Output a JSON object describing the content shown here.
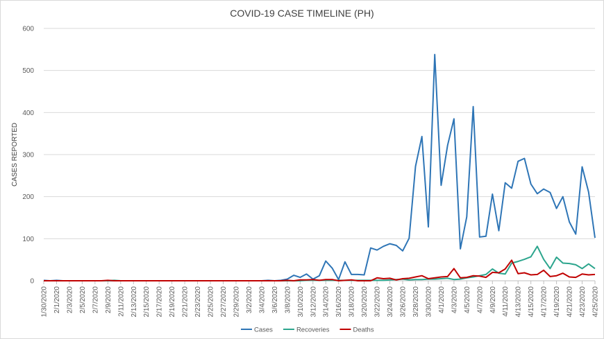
{
  "chart_data": {
    "type": "line",
    "title": "COVID-19 CASE TIMELINE (PH)",
    "xlabel": "",
    "ylabel": "CASES REPORTED",
    "ylim": [
      0,
      600
    ],
    "yticks": [
      0,
      100,
      200,
      300,
      400,
      500,
      600
    ],
    "grid": true,
    "legend_position": "bottom",
    "x_tick_labels": [
      "1/30/2020",
      "2/1/2020",
      "2/3/2020",
      "2/5/2020",
      "2/7/2020",
      "2/9/2020",
      "2/11/2020",
      "2/13/2020",
      "2/15/2020",
      "2/17/2020",
      "2/19/2020",
      "2/21/2020",
      "2/23/2020",
      "2/25/2020",
      "2/27/2020",
      "2/29/2020",
      "3/2/2020",
      "3/4/2020",
      "3/6/2020",
      "3/8/2020",
      "3/10/2020",
      "3/12/2020",
      "3/14/2020",
      "3/16/2020",
      "3/18/2020",
      "3/20/2020",
      "3/22/2020",
      "3/24/2020",
      "3/26/2020",
      "3/28/2020",
      "3/30/2020",
      "4/1/2020",
      "4/3/2020",
      "4/5/2020",
      "4/7/2020",
      "4/9/2020",
      "4/11/2020",
      "4/13/2020",
      "4/15/2020",
      "4/17/2020",
      "4/19/2020",
      "4/21/2020",
      "4/23/2020",
      "4/25/2020"
    ],
    "x": [
      "1/30/2020",
      "1/31/2020",
      "2/1/2020",
      "2/2/2020",
      "2/3/2020",
      "2/4/2020",
      "2/5/2020",
      "2/6/2020",
      "2/7/2020",
      "2/8/2020",
      "2/9/2020",
      "2/10/2020",
      "2/11/2020",
      "2/12/2020",
      "2/13/2020",
      "2/14/2020",
      "2/15/2020",
      "2/16/2020",
      "2/17/2020",
      "2/18/2020",
      "2/19/2020",
      "2/20/2020",
      "2/21/2020",
      "2/22/2020",
      "2/23/2020",
      "2/24/2020",
      "2/25/2020",
      "2/26/2020",
      "2/27/2020",
      "2/28/2020",
      "2/29/2020",
      "3/1/2020",
      "3/2/2020",
      "3/3/2020",
      "3/4/2020",
      "3/5/2020",
      "3/6/2020",
      "3/7/2020",
      "3/8/2020",
      "3/9/2020",
      "3/10/2020",
      "3/11/2020",
      "3/12/2020",
      "3/13/2020",
      "3/14/2020",
      "3/15/2020",
      "3/16/2020",
      "3/17/2020",
      "3/18/2020",
      "3/19/2020",
      "3/20/2020",
      "3/21/2020",
      "3/22/2020",
      "3/23/2020",
      "3/24/2020",
      "3/25/2020",
      "3/26/2020",
      "3/27/2020",
      "3/28/2020",
      "3/29/2020",
      "3/30/2020",
      "3/31/2020",
      "4/1/2020",
      "4/2/2020",
      "4/3/2020",
      "4/4/2020",
      "4/5/2020",
      "4/6/2020",
      "4/7/2020",
      "4/8/2020",
      "4/9/2020",
      "4/10/2020",
      "4/11/2020",
      "4/12/2020",
      "4/13/2020",
      "4/14/2020",
      "4/15/2020",
      "4/16/2020",
      "4/17/2020",
      "4/18/2020",
      "4/19/2020",
      "4/20/2020",
      "4/21/2020",
      "4/22/2020",
      "4/23/2020",
      "4/24/2020",
      "4/25/2020"
    ],
    "series": [
      {
        "name": "Cases",
        "color": "#2e75b6",
        "values": [
          1,
          0,
          1,
          0,
          0,
          0,
          0,
          0,
          0,
          0,
          0,
          0,
          0,
          0,
          0,
          0,
          0,
          0,
          0,
          0,
          0,
          0,
          0,
          0,
          0,
          0,
          0,
          0,
          0,
          0,
          0,
          0,
          0,
          0,
          0,
          1,
          0,
          1,
          4,
          13,
          8,
          16,
          4,
          12,
          47,
          30,
          3,
          45,
          15,
          15,
          14,
          78,
          73,
          82,
          88,
          84,
          71,
          101,
          272,
          343,
          128,
          538,
          227,
          322,
          385,
          76,
          152,
          414,
          104,
          106,
          206,
          119,
          233,
          220,
          284,
          291,
          230,
          207,
          218,
          210,
          172,
          200,
          140,
          111,
          271,
          211,
          102
        ]
      },
      {
        "name": "Recoveries",
        "color": "#2ca58d",
        "values": [
          0,
          0,
          0,
          0,
          0,
          0,
          0,
          0,
          0,
          0,
          0,
          1,
          0,
          0,
          0,
          0,
          0,
          0,
          0,
          0,
          0,
          0,
          0,
          0,
          0,
          0,
          0,
          0,
          0,
          0,
          0,
          0,
          0,
          0,
          0,
          0,
          0,
          0,
          0,
          0,
          0,
          1,
          1,
          1,
          1,
          1,
          1,
          1,
          1,
          1,
          1,
          1,
          1,
          1,
          2,
          3,
          4,
          2,
          3,
          3,
          4,
          4,
          5,
          6,
          3,
          4,
          7,
          9,
          12,
          15,
          28,
          18,
          16,
          42,
          46,
          51,
          57,
          82,
          51,
          29,
          56,
          42,
          41,
          38,
          29,
          40,
          29
        ]
      },
      {
        "name": "Deaths",
        "color": "#c00000",
        "values": [
          0,
          0,
          0,
          0,
          0,
          0,
          0,
          0,
          0,
          0,
          1,
          0,
          0,
          0,
          0,
          0,
          0,
          0,
          0,
          0,
          0,
          0,
          0,
          0,
          0,
          0,
          0,
          0,
          0,
          0,
          0,
          0,
          0,
          0,
          0,
          0,
          0,
          0,
          1,
          0,
          2,
          2,
          3,
          1,
          3,
          3,
          0,
          1,
          2,
          0,
          0,
          0,
          7,
          5,
          6,
          2,
          5,
          6,
          9,
          12,
          5,
          7,
          9,
          10,
          29,
          7,
          8,
          12,
          11,
          8,
          20,
          19,
          28,
          49,
          17,
          19,
          14,
          15,
          25,
          10,
          12,
          18,
          9,
          8,
          16,
          14,
          15
        ]
      }
    ]
  }
}
